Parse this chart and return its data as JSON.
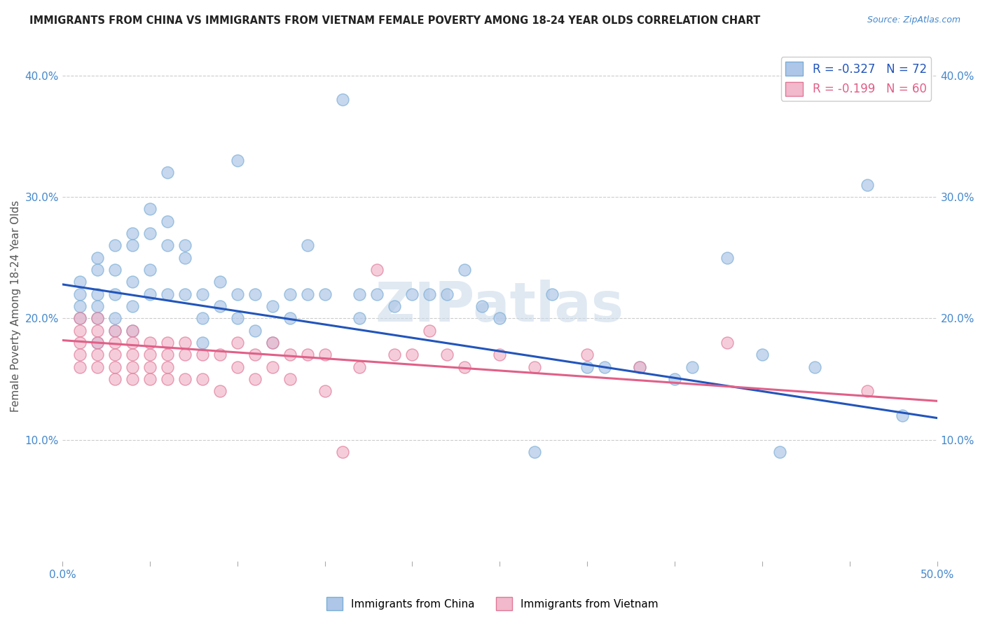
{
  "title": "IMMIGRANTS FROM CHINA VS IMMIGRANTS FROM VIETNAM FEMALE POVERTY AMONG 18-24 YEAR OLDS CORRELATION CHART",
  "source": "Source: ZipAtlas.com",
  "ylabel": "Female Poverty Among 18-24 Year Olds",
  "xlim": [
    0.0,
    0.5
  ],
  "ylim": [
    0.0,
    0.42
  ],
  "xticks": [
    0.0,
    0.05,
    0.1,
    0.15,
    0.2,
    0.25,
    0.3,
    0.35,
    0.4,
    0.45,
    0.5
  ],
  "yticks": [
    0.1,
    0.2,
    0.3,
    0.4
  ],
  "xtick_labels_show": [
    "0.0%",
    "",
    "",
    "",
    "",
    "",
    "",
    "",
    "",
    "",
    "50.0%"
  ],
  "ytick_labels": [
    "10.0%",
    "20.0%",
    "30.0%",
    "40.0%"
  ],
  "china_color": "#aec6e8",
  "china_edge_color": "#7aaed6",
  "vietnam_color": "#f2b8cb",
  "vietnam_edge_color": "#e07898",
  "china_line_color": "#2255bb",
  "vietnam_line_color": "#e06088",
  "legend_china_label": "Immigrants from China",
  "legend_vietnam_label": "Immigrants from Vietnam",
  "R_china": -0.327,
  "N_china": 72,
  "R_vietnam": -0.199,
  "N_vietnam": 60,
  "watermark": "ZIPatlas",
  "china_x": [
    0.01,
    0.01,
    0.01,
    0.01,
    0.02,
    0.02,
    0.02,
    0.02,
    0.02,
    0.02,
    0.03,
    0.03,
    0.03,
    0.03,
    0.03,
    0.04,
    0.04,
    0.04,
    0.04,
    0.04,
    0.05,
    0.05,
    0.05,
    0.05,
    0.06,
    0.06,
    0.06,
    0.06,
    0.07,
    0.07,
    0.07,
    0.08,
    0.08,
    0.08,
    0.09,
    0.09,
    0.1,
    0.1,
    0.1,
    0.11,
    0.11,
    0.12,
    0.12,
    0.13,
    0.13,
    0.14,
    0.14,
    0.15,
    0.16,
    0.17,
    0.17,
    0.18,
    0.19,
    0.2,
    0.21,
    0.22,
    0.23,
    0.24,
    0.25,
    0.27,
    0.28,
    0.3,
    0.31,
    0.33,
    0.35,
    0.36,
    0.38,
    0.4,
    0.41,
    0.43,
    0.46,
    0.48
  ],
  "china_y": [
    0.22,
    0.23,
    0.21,
    0.2,
    0.25,
    0.24,
    0.22,
    0.21,
    0.2,
    0.18,
    0.26,
    0.24,
    0.22,
    0.2,
    0.19,
    0.27,
    0.26,
    0.23,
    0.21,
    0.19,
    0.29,
    0.27,
    0.24,
    0.22,
    0.32,
    0.28,
    0.26,
    0.22,
    0.26,
    0.25,
    0.22,
    0.22,
    0.2,
    0.18,
    0.23,
    0.21,
    0.33,
    0.22,
    0.2,
    0.22,
    0.19,
    0.21,
    0.18,
    0.22,
    0.2,
    0.26,
    0.22,
    0.22,
    0.38,
    0.22,
    0.2,
    0.22,
    0.21,
    0.22,
    0.22,
    0.22,
    0.24,
    0.21,
    0.2,
    0.09,
    0.22,
    0.16,
    0.16,
    0.16,
    0.15,
    0.16,
    0.25,
    0.17,
    0.09,
    0.16,
    0.31,
    0.12
  ],
  "vietnam_x": [
    0.01,
    0.01,
    0.01,
    0.01,
    0.01,
    0.02,
    0.02,
    0.02,
    0.02,
    0.02,
    0.03,
    0.03,
    0.03,
    0.03,
    0.03,
    0.04,
    0.04,
    0.04,
    0.04,
    0.04,
    0.05,
    0.05,
    0.05,
    0.05,
    0.06,
    0.06,
    0.06,
    0.06,
    0.07,
    0.07,
    0.07,
    0.08,
    0.08,
    0.09,
    0.09,
    0.1,
    0.1,
    0.11,
    0.11,
    0.12,
    0.12,
    0.13,
    0.13,
    0.14,
    0.15,
    0.15,
    0.16,
    0.17,
    0.18,
    0.19,
    0.2,
    0.21,
    0.22,
    0.23,
    0.25,
    0.27,
    0.3,
    0.33,
    0.38,
    0.46
  ],
  "vietnam_y": [
    0.2,
    0.19,
    0.18,
    0.17,
    0.16,
    0.2,
    0.19,
    0.18,
    0.17,
    0.16,
    0.19,
    0.18,
    0.17,
    0.16,
    0.15,
    0.19,
    0.18,
    0.17,
    0.16,
    0.15,
    0.18,
    0.17,
    0.16,
    0.15,
    0.18,
    0.17,
    0.16,
    0.15,
    0.18,
    0.17,
    0.15,
    0.17,
    0.15,
    0.17,
    0.14,
    0.18,
    0.16,
    0.17,
    0.15,
    0.18,
    0.16,
    0.17,
    0.15,
    0.17,
    0.17,
    0.14,
    0.09,
    0.16,
    0.24,
    0.17,
    0.17,
    0.19,
    0.17,
    0.16,
    0.17,
    0.16,
    0.17,
    0.16,
    0.18,
    0.14
  ],
  "china_line_start_y": 0.228,
  "china_line_end_y": 0.118,
  "vietnam_line_start_y": 0.182,
  "vietnam_line_end_y": 0.132
}
